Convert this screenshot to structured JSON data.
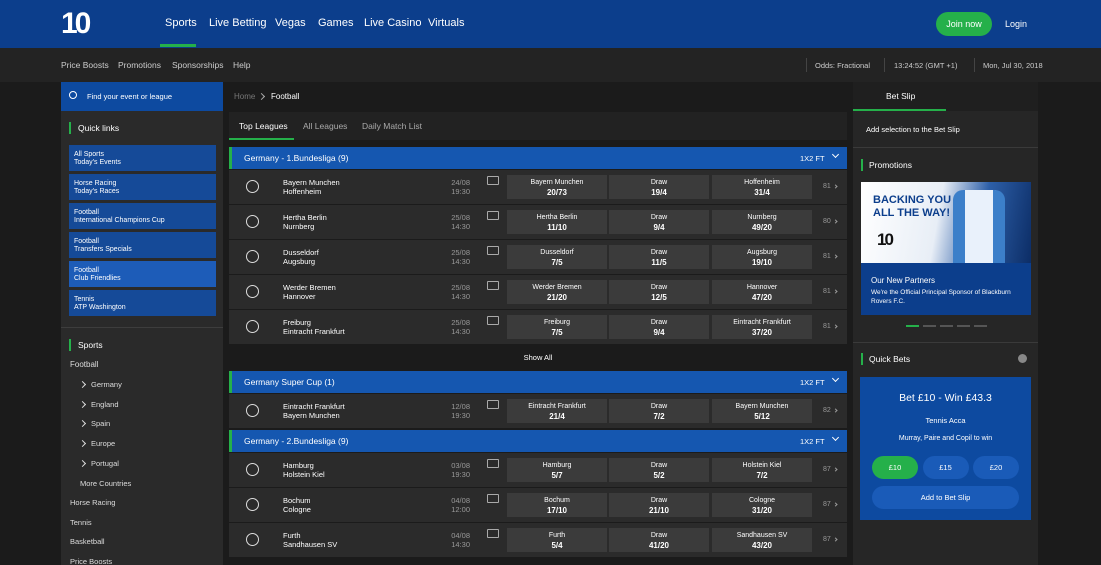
{
  "header": {
    "logo": "10",
    "nav": [
      "Sports",
      "Live Betting",
      "Vegas",
      "Games",
      "Live Casino",
      "Virtuals"
    ],
    "join": "Join now",
    "login": "Login"
  },
  "subnav": {
    "links": [
      "Price Boosts",
      "Promotions",
      "Sponsorships",
      "Help"
    ],
    "odds": "Odds: Fractional",
    "time": "13:24:52 (GMT +1)",
    "date": "Mon, Jul 30, 2018"
  },
  "sidebar": {
    "search": "Find your event or league",
    "quick_links_title": "Quick links",
    "quick_links": [
      [
        "All Sports",
        "Today's Events"
      ],
      [
        "Horse Racing",
        "Today's Races"
      ],
      [
        "Football",
        "International Champions Cup"
      ],
      [
        "Football",
        "Transfers Specials"
      ],
      [
        "Football",
        "Club Friendlies"
      ],
      [
        "Tennis",
        "ATP Washington"
      ]
    ],
    "sports_title": "Sports",
    "sport": "Football",
    "countries": [
      "Germany",
      "England",
      "Spain",
      "Europe",
      "Portugal"
    ],
    "more_countries": "More Countries",
    "other_sports": [
      "Horse Racing",
      "Tennis",
      "Basketball",
      "Price Boosts"
    ]
  },
  "content": {
    "breadcrumb": [
      "Home",
      "Football"
    ],
    "tabs": [
      "Top Leagues",
      "All Leagues",
      "Daily Match List"
    ],
    "draw_label": "Draw",
    "show_all": "Show All",
    "leagues": [
      {
        "name": "Germany - 1.Bundesliga (9)",
        "market": "1X2 FT",
        "matches": [
          {
            "home": "Bayern Munchen",
            "away": "Hoffenheim",
            "date": "24/08",
            "time": "19:30",
            "odds": [
              "20/73",
              "19/4",
              "31/4"
            ],
            "more": 81
          },
          {
            "home": "Hertha Berlin",
            "away": "Nurnberg",
            "date": "25/08",
            "time": "14:30",
            "odds": [
              "11/10",
              "9/4",
              "49/20"
            ],
            "more": 80
          },
          {
            "home": "Dusseldorf",
            "away": "Augsburg",
            "date": "25/08",
            "time": "14:30",
            "odds": [
              "7/5",
              "11/5",
              "19/10"
            ],
            "more": 81
          },
          {
            "home": "Werder Bremen",
            "away": "Hannover",
            "date": "25/08",
            "time": "14:30",
            "odds": [
              "21/20",
              "12/5",
              "47/20"
            ],
            "more": 81
          },
          {
            "home": "Freiburg",
            "away": "Eintracht Frankfurt",
            "date": "25/08",
            "time": "14:30",
            "odds": [
              "7/5",
              "9/4",
              "37/20"
            ],
            "more": 81
          }
        ]
      },
      {
        "name": "Germany Super Cup (1)",
        "market": "1X2 FT",
        "matches": [
          {
            "home": "Eintracht Frankfurt",
            "away": "Bayern Munchen",
            "date": "12/08",
            "time": "19:30",
            "odds": [
              "21/4",
              "7/2",
              "5/12"
            ],
            "more": 82
          }
        ]
      },
      {
        "name": "Germany - 2.Bundesliga (9)",
        "market": "1X2 FT",
        "matches": [
          {
            "home": "Hamburg",
            "away": "Holstein Kiel",
            "date": "03/08",
            "time": "19:30",
            "odds": [
              "5/7",
              "5/2",
              "7/2"
            ],
            "more": 87
          },
          {
            "home": "Bochum",
            "away": "Cologne",
            "date": "04/08",
            "time": "12:00",
            "odds": [
              "17/10",
              "21/10",
              "31/20"
            ],
            "more": 87
          },
          {
            "home": "Furth",
            "away": "Sandhausen SV",
            "date": "04/08",
            "time": "14:30",
            "odds": [
              "5/4",
              "41/20",
              "43/20"
            ],
            "more": 87
          }
        ]
      }
    ]
  },
  "betslip": {
    "title": "Bet Slip",
    "message": "Add selection to the Bet Slip"
  },
  "promotions": {
    "title": "Promotions",
    "banner": "BACKING YOU ALL THE WAY!",
    "heading": "Our New Partners",
    "text": "We're the Official Principal Sponsor of Blackburn Rovers F.C."
  },
  "quick_bets": {
    "title": "Quick Bets",
    "headline": "Bet £10 - Win £43.3",
    "type": "Tennis Acca",
    "desc": "Murray, Paire and Copil to win",
    "stakes": [
      "£10",
      "£15",
      "£20"
    ],
    "add": "Add to Bet Slip"
  }
}
